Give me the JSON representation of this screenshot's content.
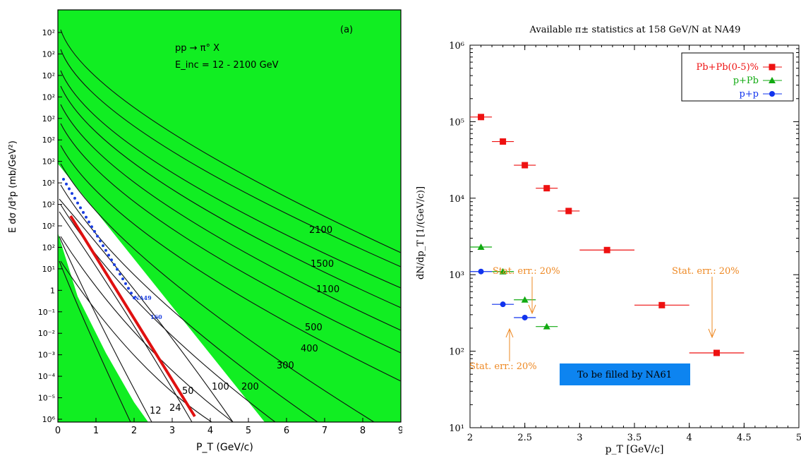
{
  "left_chart": {
    "panel_tag": "(a)",
    "reaction": "pp → π° X",
    "energy_range": "E_inc = 12 - 2100 GeV",
    "ylabel": "E dσ /d³p  (mb/GeV²)",
    "xlabel": "P_T  (GeV/c)",
    "xticks": [
      "0",
      "1",
      "2",
      "3",
      "4",
      "5",
      "6",
      "7",
      "8",
      "9"
    ],
    "yticks": [
      "10²",
      "10²",
      "10²",
      "10²",
      "10²",
      "10²",
      "10²",
      "10²",
      "10²",
      "10²",
      "10²",
      "10¹",
      "1",
      "10⁻¹",
      "10⁻²",
      "10⁻³",
      "10⁻⁴",
      "10⁻⁵",
      "10⁶"
    ],
    "curve_labels": [
      "2100",
      "1500",
      "1100",
      "500",
      "400",
      "300",
      "200",
      "100",
      "50",
      "24",
      "12"
    ],
    "na49_label": "NA49",
    "na49_energy": "160",
    "colors": {
      "fill": "#11ee22",
      "red_line": "#e01010",
      "blue_dots": "#1a3ee0"
    }
  },
  "chart_data": {
    "type": "scatter",
    "title": "Available π± statistics at 158 GeV/N at NA49",
    "xlabel": "p_T [GeV/c]",
    "ylabel": "dN/dp_T [1/(GeV/c)]",
    "xlim": [
      2,
      5
    ],
    "ylim": [
      10,
      1000000
    ],
    "yscale": "log",
    "xticks": [
      "2",
      "2.5",
      "3",
      "3.5",
      "4",
      "4.5",
      "5"
    ],
    "yticks": [
      "10¹",
      "10²",
      "10³",
      "10⁴",
      "10⁵",
      "10⁶"
    ],
    "legend_position": "top-right",
    "series": [
      {
        "name": "Pb+Pb(0-5)%",
        "color": "#ee1111",
        "marker": "square",
        "x": [
          2.1,
          2.3,
          2.5,
          2.7,
          2.9,
          3.25,
          3.75,
          4.25
        ],
        "xerr": [
          0.1,
          0.1,
          0.1,
          0.1,
          0.1,
          0.25,
          0.25,
          0.25
        ],
        "y": [
          115000,
          55000,
          27000,
          13500,
          6800,
          2100,
          400,
          95
        ]
      },
      {
        "name": "p+Pb",
        "color": "#11aa11",
        "marker": "triangle",
        "x": [
          2.1,
          2.3,
          2.5,
          2.7
        ],
        "xerr": [
          0.1,
          0.1,
          0.1,
          0.1
        ],
        "y": [
          2300,
          1100,
          470,
          210
        ]
      },
      {
        "name": "p+p",
        "color": "#1133ee",
        "marker": "circle",
        "x": [
          2.1,
          2.3,
          2.5
        ],
        "xerr": [
          0.1,
          0.1,
          0.1
        ],
        "y": [
          1100,
          410,
          275
        ]
      }
    ],
    "annotations": [
      {
        "text": "Stat. err.: 20%",
        "color": "#ee8822"
      },
      {
        "text": "Stat. err.: 20%",
        "color": "#ee8822"
      },
      {
        "text": "Stat. err.: 20%",
        "color": "#ee8822"
      }
    ],
    "box": {
      "text": "To be filled by NA61",
      "color": "#0d84f0"
    }
  }
}
